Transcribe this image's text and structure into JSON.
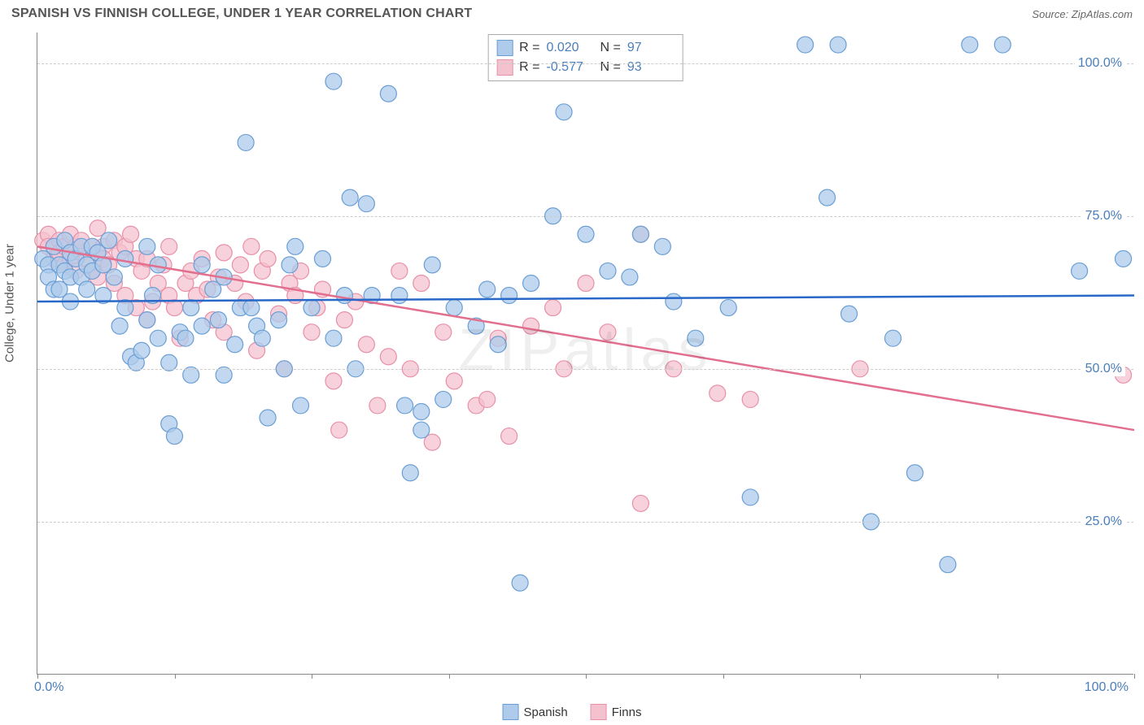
{
  "header": {
    "title": "SPANISH VS FINNISH COLLEGE, UNDER 1 YEAR CORRELATION CHART",
    "source_label": "Source:",
    "source_name": "ZipAtlas.com"
  },
  "axes": {
    "ylabel": "College, Under 1 year",
    "xlim": [
      0,
      100
    ],
    "ylim": [
      0,
      105
    ],
    "xtick_positions": [
      0,
      12.5,
      25,
      37.5,
      50,
      62.5,
      75,
      87.5,
      100
    ],
    "xlabel_start": "0.0%",
    "xlabel_end": "100.0%",
    "yticks": [
      {
        "v": 25,
        "label": "25.0%"
      },
      {
        "v": 50,
        "label": "50.0%"
      },
      {
        "v": 75,
        "label": "75.0%"
      },
      {
        "v": 100,
        "label": "100.0%"
      }
    ],
    "grid_color": "#cccccc",
    "tick_color": "#4a7ebb",
    "axis_label_color": "#555555",
    "label_fontsize": 15
  },
  "watermark": "ZIPatlas",
  "series": {
    "spanish": {
      "label": "Spanish",
      "fill_color": "#aecbeb",
      "stroke_color": "#6a9ed4",
      "line_color": "#2868c8",
      "marker_radius": 10,
      "marker_opacity": 0.75,
      "line_width": 2.5,
      "R": "0.020",
      "N": "97",
      "trend": {
        "x1": 0,
        "y1": 61,
        "x2": 100,
        "y2": 62
      }
    },
    "finns": {
      "label": "Finns",
      "fill_color": "#f4c2cf",
      "stroke_color": "#e890a8",
      "line_color": "#e36f8e",
      "marker_radius": 10,
      "marker_opacity": 0.75,
      "line_width": 2.5,
      "R": "-0.577",
      "N": "93",
      "trend": {
        "x1": 0,
        "y1": 70,
        "x2": 100,
        "y2": 40
      }
    }
  },
  "spanish_points": [
    [
      0.5,
      68
    ],
    [
      1,
      67
    ],
    [
      1,
      65
    ],
    [
      1.5,
      70
    ],
    [
      1.5,
      63
    ],
    [
      2,
      67
    ],
    [
      2,
      63
    ],
    [
      2.5,
      66
    ],
    [
      2.5,
      71
    ],
    [
      3,
      69
    ],
    [
      3,
      65
    ],
    [
      3,
      61
    ],
    [
      3.5,
      68
    ],
    [
      4,
      70
    ],
    [
      4,
      65
    ],
    [
      4.5,
      67
    ],
    [
      4.5,
      63
    ],
    [
      5,
      66
    ],
    [
      5,
      70
    ],
    [
      5.5,
      69
    ],
    [
      6,
      62
    ],
    [
      6,
      67
    ],
    [
      6.5,
      71
    ],
    [
      7,
      65
    ],
    [
      7.5,
      57
    ],
    [
      8,
      60
    ],
    [
      8,
      68
    ],
    [
      8.5,
      52
    ],
    [
      9,
      51
    ],
    [
      9.5,
      53
    ],
    [
      10,
      58
    ],
    [
      10,
      70
    ],
    [
      10.5,
      62
    ],
    [
      11,
      67
    ],
    [
      11,
      55
    ],
    [
      12,
      51
    ],
    [
      12,
      41
    ],
    [
      12.5,
      39
    ],
    [
      13,
      56
    ],
    [
      13.5,
      55
    ],
    [
      14,
      49
    ],
    [
      14,
      60
    ],
    [
      15,
      57
    ],
    [
      15,
      67
    ],
    [
      16,
      63
    ],
    [
      16.5,
      58
    ],
    [
      17,
      65
    ],
    [
      17,
      49
    ],
    [
      18,
      54
    ],
    [
      18.5,
      60
    ],
    [
      19,
      87
    ],
    [
      19.5,
      60
    ],
    [
      20,
      57
    ],
    [
      20.5,
      55
    ],
    [
      21,
      42
    ],
    [
      22,
      58
    ],
    [
      22.5,
      50
    ],
    [
      23,
      67
    ],
    [
      23.5,
      70
    ],
    [
      24,
      44
    ],
    [
      25,
      60
    ],
    [
      26,
      68
    ],
    [
      27,
      55
    ],
    [
      27,
      97
    ],
    [
      28,
      62
    ],
    [
      28.5,
      78
    ],
    [
      29,
      50
    ],
    [
      30,
      77
    ],
    [
      30.5,
      62
    ],
    [
      32,
      95
    ],
    [
      33,
      62
    ],
    [
      33.5,
      44
    ],
    [
      34,
      33
    ],
    [
      35,
      43
    ],
    [
      35,
      40
    ],
    [
      36,
      67
    ],
    [
      37,
      45
    ],
    [
      38,
      60
    ],
    [
      40,
      57
    ],
    [
      41,
      63
    ],
    [
      42,
      54
    ],
    [
      43,
      62
    ],
    [
      44,
      15
    ],
    [
      45,
      64
    ],
    [
      47,
      75
    ],
    [
      48,
      92
    ],
    [
      50,
      72
    ],
    [
      52,
      66
    ],
    [
      54,
      65
    ],
    [
      55,
      72
    ],
    [
      57,
      70
    ],
    [
      58,
      61
    ],
    [
      60,
      55
    ],
    [
      63,
      60
    ],
    [
      65,
      29
    ],
    [
      70,
      103
    ],
    [
      72,
      78
    ],
    [
      73,
      103
    ],
    [
      74,
      59
    ],
    [
      76,
      25
    ],
    [
      78,
      55
    ],
    [
      80,
      33
    ],
    [
      83,
      18
    ],
    [
      85,
      103
    ],
    [
      88,
      103
    ],
    [
      95,
      66
    ],
    [
      99,
      68
    ]
  ],
  "finns_points": [
    [
      0.5,
      71
    ],
    [
      1,
      72
    ],
    [
      1,
      70
    ],
    [
      1.5,
      68
    ],
    [
      2,
      71
    ],
    [
      2,
      69
    ],
    [
      2.5,
      70
    ],
    [
      2.5,
      67
    ],
    [
      3,
      72
    ],
    [
      3,
      68
    ],
    [
      3.5,
      70
    ],
    [
      3.5,
      66
    ],
    [
      4,
      69
    ],
    [
      4,
      71
    ],
    [
      4.5,
      68
    ],
    [
      5,
      70
    ],
    [
      5,
      66
    ],
    [
      5.5,
      73
    ],
    [
      5.5,
      65
    ],
    [
      6,
      70
    ],
    [
      6,
      68
    ],
    [
      6.5,
      67
    ],
    [
      7,
      71
    ],
    [
      7,
      64
    ],
    [
      7.5,
      69
    ],
    [
      8,
      70
    ],
    [
      8,
      62
    ],
    [
      8.5,
      72
    ],
    [
      9,
      68
    ],
    [
      9,
      60
    ],
    [
      9.5,
      66
    ],
    [
      10,
      68
    ],
    [
      10,
      58
    ],
    [
      10.5,
      61
    ],
    [
      11,
      64
    ],
    [
      11.5,
      67
    ],
    [
      12,
      62
    ],
    [
      12,
      70
    ],
    [
      12.5,
      60
    ],
    [
      13,
      55
    ],
    [
      13.5,
      64
    ],
    [
      14,
      66
    ],
    [
      14.5,
      62
    ],
    [
      15,
      68
    ],
    [
      15.5,
      63
    ],
    [
      16,
      58
    ],
    [
      16.5,
      65
    ],
    [
      17,
      69
    ],
    [
      17,
      56
    ],
    [
      18,
      64
    ],
    [
      18.5,
      67
    ],
    [
      19,
      61
    ],
    [
      19.5,
      70
    ],
    [
      20,
      53
    ],
    [
      20.5,
      66
    ],
    [
      21,
      68
    ],
    [
      22,
      59
    ],
    [
      22.5,
      50
    ],
    [
      23,
      64
    ],
    [
      23.5,
      62
    ],
    [
      24,
      66
    ],
    [
      25,
      56
    ],
    [
      25.5,
      60
    ],
    [
      26,
      63
    ],
    [
      27,
      48
    ],
    [
      27.5,
      40
    ],
    [
      28,
      58
    ],
    [
      29,
      61
    ],
    [
      30,
      54
    ],
    [
      31,
      44
    ],
    [
      32,
      52
    ],
    [
      33,
      66
    ],
    [
      34,
      50
    ],
    [
      35,
      64
    ],
    [
      36,
      38
    ],
    [
      37,
      56
    ],
    [
      38,
      48
    ],
    [
      40,
      44
    ],
    [
      41,
      45
    ],
    [
      42,
      55
    ],
    [
      43,
      39
    ],
    [
      45,
      57
    ],
    [
      47,
      60
    ],
    [
      48,
      50
    ],
    [
      50,
      64
    ],
    [
      52,
      56
    ],
    [
      55,
      28
    ],
    [
      55,
      72
    ],
    [
      58,
      50
    ],
    [
      62,
      46
    ],
    [
      65,
      45
    ],
    [
      75,
      50
    ],
    [
      99,
      49
    ]
  ],
  "legend": {
    "items": [
      {
        "key": "spanish"
      },
      {
        "key": "finns"
      }
    ]
  },
  "styles": {
    "background_color": "#ffffff",
    "title_color": "#555555",
    "title_fontsize": 16
  }
}
